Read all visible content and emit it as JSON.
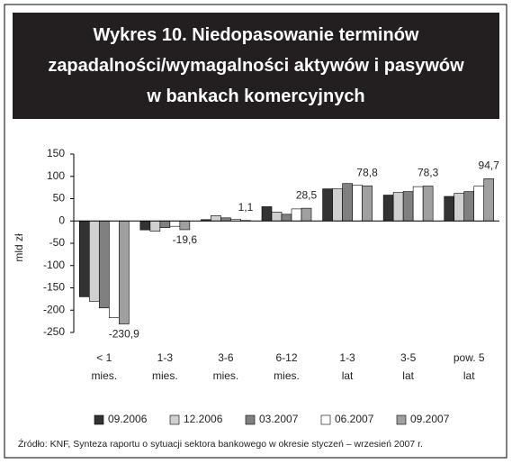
{
  "chart_data": {
    "type": "bar",
    "title": [
      "Wykres 10. Niedopasowanie terminów",
      "zapadalności/wymagalności aktywów i pasywów",
      "w bankach komercyjnych"
    ],
    "ylabel": "mld zł",
    "categories": [
      [
        "< 1",
        "mies."
      ],
      [
        "1-3",
        "mies."
      ],
      [
        "3-6",
        "mies."
      ],
      [
        "6-12",
        "mies."
      ],
      [
        "1-3",
        "lat"
      ],
      [
        "3-5",
        "lat"
      ],
      [
        "pow. 5",
        "lat"
      ]
    ],
    "series": [
      {
        "name": "09.2006",
        "color": "#333333",
        "values": [
          -170,
          -20,
          3,
          32,
          72,
          58,
          55
        ]
      },
      {
        "name": "12.2006",
        "color": "#d0d0d0",
        "values": [
          -180,
          -23,
          12,
          20,
          72,
          64,
          62
        ]
      },
      {
        "name": "03.2007",
        "color": "#808080",
        "values": [
          -195,
          -15,
          7,
          15,
          84,
          66,
          66
        ]
      },
      {
        "name": "06.2007",
        "color": "#ffffff",
        "values": [
          -217,
          -12,
          4,
          27,
          80,
          77,
          78
        ]
      },
      {
        "name": "09.2007",
        "color": "#a0a0a0",
        "values": [
          -230.9,
          -19.6,
          1.1,
          28.5,
          78.8,
          78.3,
          94.7
        ],
        "value_labels": [
          "-230,9",
          "-19,6",
          "1,1",
          "28,5",
          "78,8",
          "78,3",
          "94,7"
        ]
      }
    ],
    "ylim": [
      -250,
      150
    ],
    "yticks": [
      -250,
      -200,
      -150,
      -100,
      -50,
      0,
      50,
      100,
      150
    ],
    "source": "Źródło: KNF, Synteza raportu o sytuacji sektora bankowego w okresie styczeń – wrzesień 2007 r."
  }
}
